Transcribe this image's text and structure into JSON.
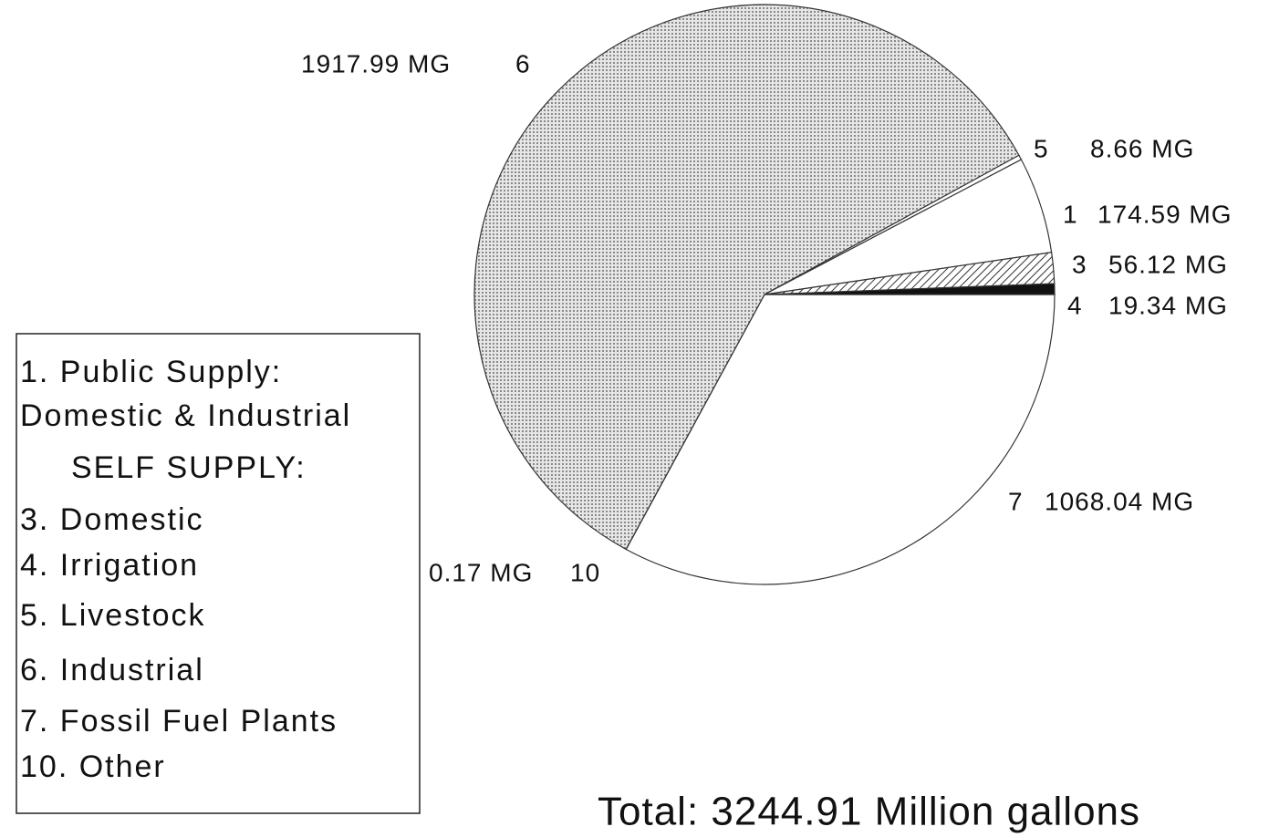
{
  "chart_data": {
    "type": "pie",
    "categories": [
      "7",
      "10",
      "6",
      "5",
      "1",
      "3",
      "4"
    ],
    "values": [
      1068.04,
      0.17,
      1917.99,
      8.66,
      174.59,
      56.12,
      19.34
    ],
    "value_labels": [
      "1068.04 MG",
      "0.17 MG",
      "1917.99 MG",
      "8.66 MG",
      "174.59 MG",
      "56.12 MG",
      "19.34 MG"
    ],
    "colors": [
      "#ffffff",
      "#ffffff",
      "#d9d9d9",
      "#ffffff",
      "#ffffff",
      "#9a9a9a",
      "#111111"
    ],
    "legend": [
      "1. Public Supply:",
      "Domestic & Industrial",
      "SELF SUPPLY:",
      "3. Domestic",
      "4. Irrigation",
      "5. Livestock",
      "6. Industrial",
      "7. Fossil Fuel Plants",
      "10. Other"
    ],
    "annotation": "Total: 3244.91 Million gallons"
  }
}
